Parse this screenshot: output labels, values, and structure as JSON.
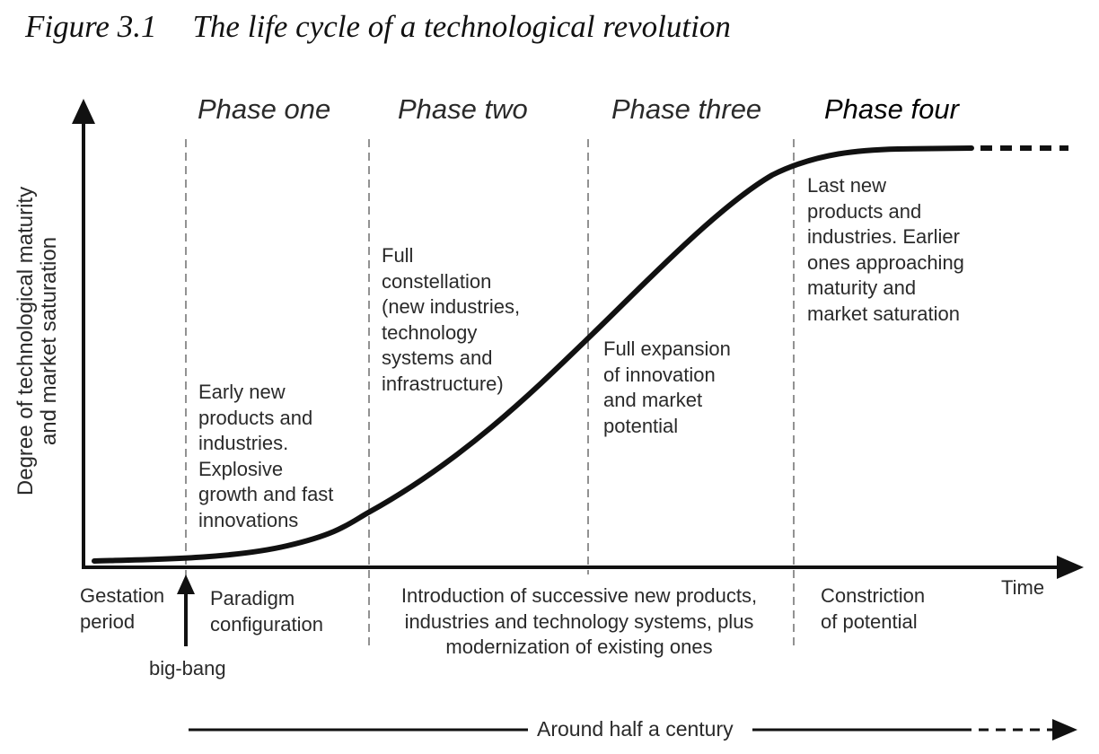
{
  "figure": {
    "number": "Figure 3.1",
    "title": "The life cycle of a technological revolution"
  },
  "axes": {
    "y_label": "Degree of technological maturity\nand market saturation",
    "x_label": "Time"
  },
  "phases": [
    {
      "name": "Phase one",
      "description": "Early new\nproducts and\nindustries.\nExplosive\ngrowth and fast\ninnovations"
    },
    {
      "name": "Phase two",
      "description": "Full\nconstellation\n(new industries,\ntechnology\nsystems and\ninfrastructure)"
    },
    {
      "name": "Phase three",
      "description": "Full expansion\nof innovation\nand market\npotential"
    },
    {
      "name": "Phase four",
      "description": "Last new\nproducts and\nindustries. Earlier\nones approaching\nmaturity and\nmarket saturation"
    }
  ],
  "bottom_labels": {
    "gestation": "Gestation\nperiod",
    "paradigm": "Paradigm\nconfiguration",
    "introduction": "Introduction of successive new products,\nindustries and technology systems, plus\nmodernization of existing ones",
    "constriction": "Constriction\nof potential",
    "big_bang": "big-bang"
  },
  "timeline": {
    "label": "Around half a century"
  }
}
